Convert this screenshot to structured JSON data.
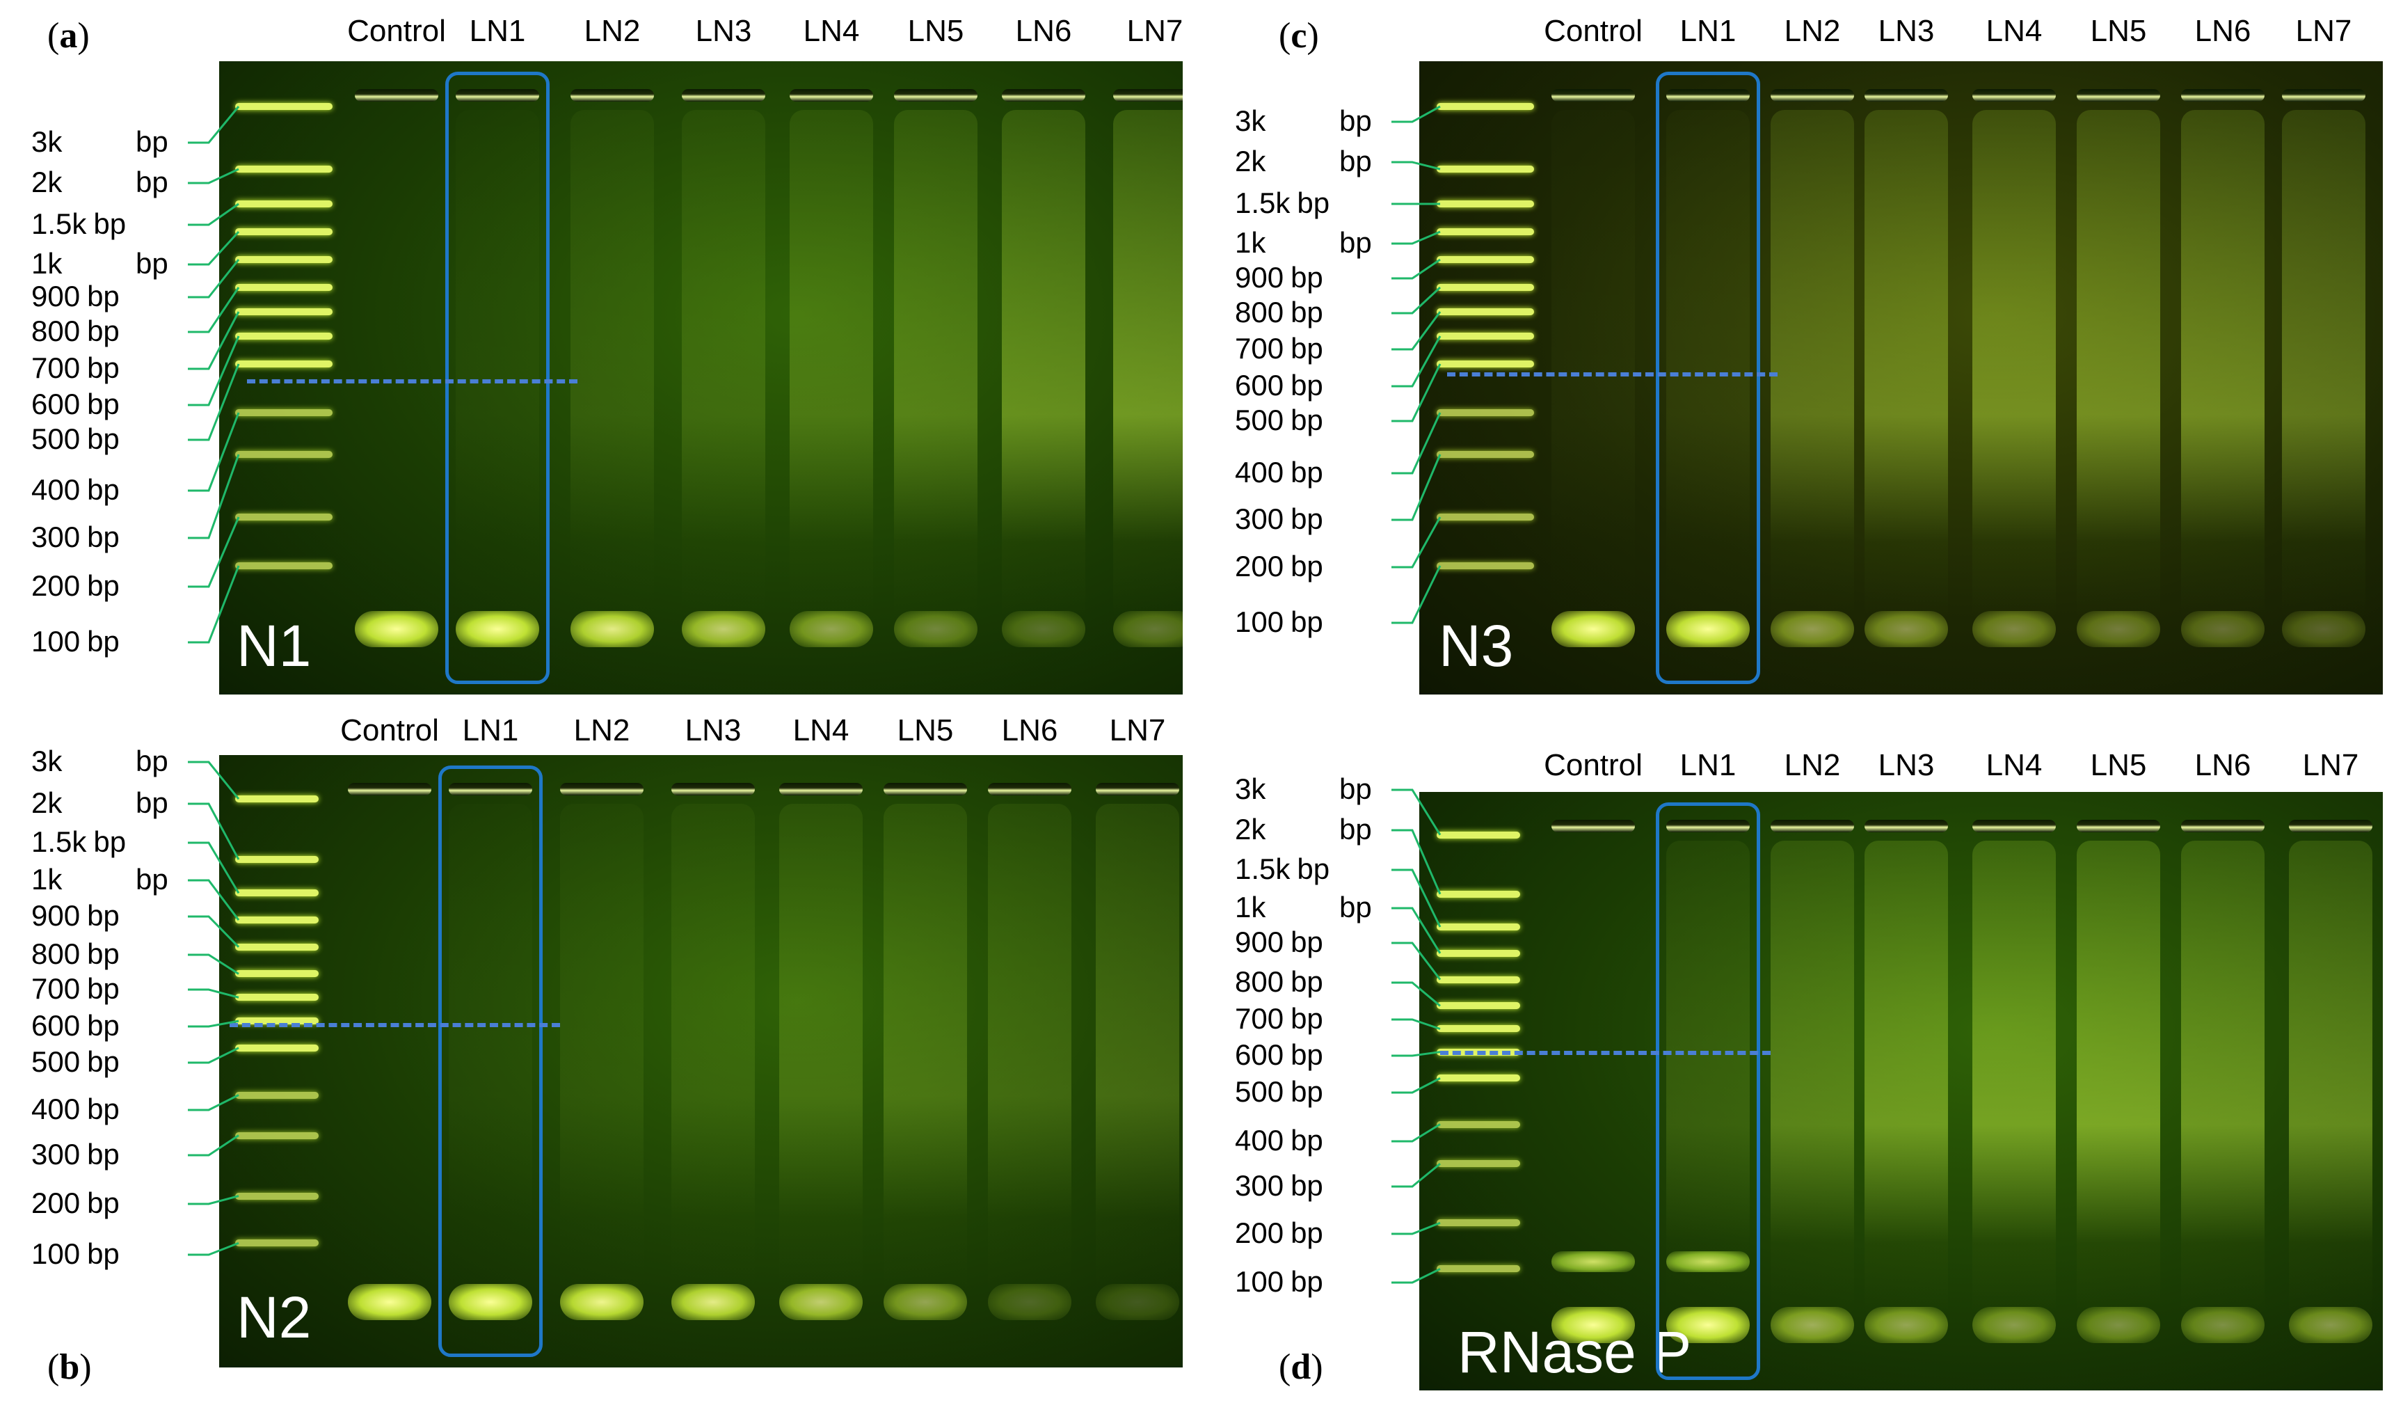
{
  "figure": {
    "lane_labels": [
      "Control",
      "LN1",
      "LN2",
      "LN3",
      "LN4",
      "LN5",
      "LN6",
      "LN7"
    ],
    "ladder_labels": [
      {
        "size": "3k",
        "unit": "bp"
      },
      {
        "size": "2k",
        "unit": "bp"
      },
      {
        "size": "1.5k",
        "unit": "bp"
      },
      {
        "size": "1k",
        "unit": "bp"
      },
      {
        "size": "900",
        "unit": "bp"
      },
      {
        "size": "800",
        "unit": "bp"
      },
      {
        "size": "700",
        "unit": "bp"
      },
      {
        "size": "600",
        "unit": "bp"
      },
      {
        "size": "500",
        "unit": "bp"
      },
      {
        "size": "400",
        "unit": "bp"
      },
      {
        "size": "300",
        "unit": "bp"
      },
      {
        "size": "200",
        "unit": "bp"
      },
      {
        "size": "100",
        "unit": "bp"
      }
    ],
    "panels": [
      {
        "id": "a",
        "letter": "(a)",
        "letter_core": "a",
        "gel_name": "N1",
        "highlighted_lane": "LN1"
      },
      {
        "id": "b",
        "letter": "(b)",
        "letter_core": "b",
        "gel_name": "N2",
        "highlighted_lane": "LN1"
      },
      {
        "id": "c",
        "letter": "(c)",
        "letter_core": "c",
        "gel_name": "N3",
        "highlighted_lane": "LN1"
      },
      {
        "id": "d",
        "letter": "(d)",
        "letter_core": "d",
        "gel_name": "RNase P",
        "highlighted_lane": "LN1"
      }
    ],
    "colors": {
      "gel_background": "#0f2a02",
      "band": "#eaff6c",
      "connector_lines": "#1fb86a",
      "highlight_box": "#1f78c8",
      "cutoff_line": "#4a7fd6"
    }
  }
}
